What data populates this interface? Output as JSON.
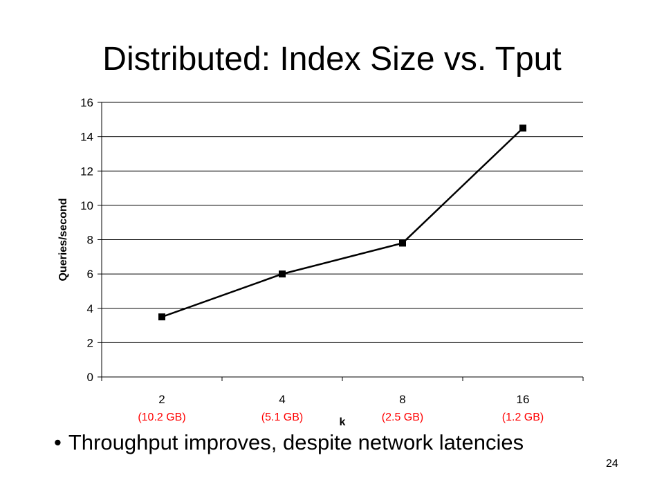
{
  "slide": {
    "title": "Distributed: Index Size vs. Tput",
    "bullet_marker": "•",
    "bullet": "Throughput improves, despite network latencies",
    "page_number": "24"
  },
  "colors": {
    "annotation": "#ff0000",
    "line": "#000000",
    "grid": "#000000"
  },
  "chart_data": {
    "type": "line",
    "title": "",
    "xlabel": "k",
    "ylabel": "Queries/second",
    "categories": [
      "2",
      "4",
      "8",
      "16"
    ],
    "category_annotations": [
      "(10.2 GB)",
      "(5.1 GB)",
      "(2.5 GB)",
      "(1.2 GB)"
    ],
    "series": [
      {
        "values": [
          3.5,
          6.0,
          7.8,
          14.5
        ]
      }
    ],
    "ylim": [
      0,
      16
    ],
    "yticks": [
      0,
      2,
      4,
      6,
      8,
      10,
      12,
      14,
      16
    ],
    "grid": true,
    "marker": "square",
    "legend": "none"
  }
}
